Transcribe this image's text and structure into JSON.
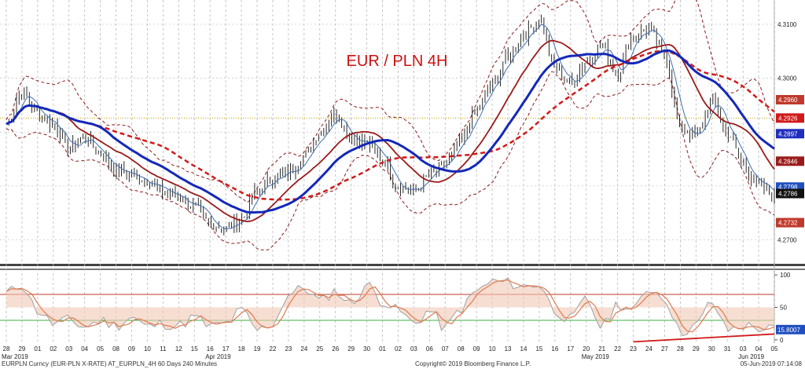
{
  "chart_data": {
    "type": "line",
    "title": "EUR / PLN 4H",
    "colors": {
      "price": "#111111",
      "ma_fast": "#1f4fbf",
      "ma_slow": "#1f2fbf",
      "ma_mid": "#9b1b1b",
      "ma_long": "#d11a1a",
      "band": "#8b1a1a",
      "title": "#cc1111",
      "stoch_k": "#a0a0a0",
      "stoch_d": "#e07a50",
      "oversold": "#3cb043",
      "overbought": "#c0392b"
    },
    "price_axis": {
      "ylim": [
        4.266,
        4.3145
      ],
      "ticks": [
        "4.2700",
        "4.2800",
        "4.2900",
        "4.3000",
        "4.3100"
      ],
      "tick_values": [
        4.27,
        4.28,
        4.29,
        4.3,
        4.31
      ]
    },
    "price_tags": [
      {
        "label": "4.2960",
        "value": 4.296,
        "color": "#c0392b"
      },
      {
        "label": "4.2926",
        "value": 4.2926,
        "color": "#d11a1a"
      },
      {
        "label": "4.2897",
        "value": 4.2897,
        "color": "#1f2fbf"
      },
      {
        "label": "4.2846",
        "value": 4.2846,
        "color": "#9b1b1b"
      },
      {
        "label": "4.2798",
        "value": 4.2798,
        "color": "#1f4fbf"
      },
      {
        "label": "4.2786",
        "value": 4.2786,
        "color": "#111111"
      },
      {
        "label": "4.2732",
        "value": 4.2732,
        "color": "#c0392b"
      }
    ],
    "reference_line": {
      "value": 4.2926
    },
    "oscillator_axis": {
      "ylim": [
        -5,
        105
      ],
      "ticks": [
        "0",
        "50",
        "100"
      ],
      "tick_values": [
        0,
        50,
        100
      ],
      "overbought": 70,
      "oversold": 30,
      "last_label": "15.8007"
    },
    "x_tick_labels": [
      "28",
      "29",
      "01",
      "02",
      "03",
      "04",
      "05",
      "08",
      "09",
      "10",
      "11",
      "12",
      "15",
      "16",
      "17",
      "18",
      "19",
      "22",
      "23",
      "24",
      "25",
      "26",
      "29",
      "30",
      "01",
      "02",
      "03",
      "06",
      "07",
      "08",
      "09",
      "10",
      "13",
      "14",
      "15",
      "16",
      "17",
      "20",
      "21",
      "22",
      "23",
      "24",
      "27",
      "28",
      "29",
      "30",
      "31",
      "03",
      "04",
      "05"
    ],
    "month_labels": [
      {
        "label": "Mar 2019",
        "index": 0
      },
      {
        "label": "Apr 2019",
        "index": 13
      },
      {
        "label": "May 2019",
        "index": 37
      },
      {
        "label": "Jun 2019",
        "index": 47
      }
    ],
    "close_anchors": [
      [
        0,
        4.2915
      ],
      [
        1,
        4.2975
      ],
      [
        2,
        4.2935
      ],
      [
        3,
        4.2915
      ],
      [
        4,
        4.287
      ],
      [
        5,
        4.289
      ],
      [
        6,
        4.286
      ],
      [
        7,
        4.283
      ],
      [
        8,
        4.282
      ],
      [
        9,
        4.281
      ],
      [
        10,
        4.279
      ],
      [
        11,
        4.278
      ],
      [
        12,
        4.276
      ],
      [
        13,
        4.273
      ],
      [
        14,
        4.272
      ],
      [
        15,
        4.274
      ],
      [
        16,
        4.279
      ],
      [
        17,
        4.2815
      ],
      [
        18,
        4.2825
      ],
      [
        19,
        4.2855
      ],
      [
        20,
        4.29
      ],
      [
        21,
        4.2935
      ],
      [
        22,
        4.289
      ],
      [
        23,
        4.288
      ],
      [
        24,
        4.285
      ],
      [
        25,
        4.28
      ],
      [
        26,
        4.279
      ],
      [
        27,
        4.282
      ],
      [
        28,
        4.284
      ],
      [
        29,
        4.288
      ],
      [
        30,
        4.294
      ],
      [
        31,
        4.299
      ],
      [
        32,
        4.304
      ],
      [
        33,
        4.308
      ],
      [
        34,
        4.311
      ],
      [
        35,
        4.302
      ],
      [
        36,
        4.299
      ],
      [
        37,
        4.303
      ],
      [
        38,
        4.306
      ],
      [
        39,
        4.301
      ],
      [
        40,
        4.308
      ],
      [
        41,
        4.309
      ],
      [
        42,
        4.304
      ],
      [
        43,
        4.291
      ],
      [
        44,
        4.289
      ],
      [
        45,
        4.296
      ],
      [
        46,
        4.29
      ],
      [
        47,
        4.284
      ],
      [
        48,
        4.28
      ],
      [
        49,
        4.2786
      ]
    ],
    "stoch_anchors": [
      [
        0,
        72
      ],
      [
        1,
        85
      ],
      [
        2,
        45
      ],
      [
        3,
        25
      ],
      [
        4,
        30
      ],
      [
        5,
        20
      ],
      [
        6,
        30
      ],
      [
        7,
        22
      ],
      [
        8,
        35
      ],
      [
        9,
        20
      ],
      [
        10,
        25
      ],
      [
        11,
        22
      ],
      [
        12,
        35
      ],
      [
        13,
        20
      ],
      [
        14,
        25
      ],
      [
        15,
        45
      ],
      [
        16,
        15
      ],
      [
        17,
        25
      ],
      [
        18,
        70
      ],
      [
        19,
        80
      ],
      [
        20,
        60
      ],
      [
        21,
        75
      ],
      [
        22,
        55
      ],
      [
        23,
        85
      ],
      [
        24,
        60
      ],
      [
        25,
        45
      ],
      [
        26,
        25
      ],
      [
        27,
        45
      ],
      [
        28,
        18
      ],
      [
        29,
        48
      ],
      [
        30,
        75
      ],
      [
        31,
        90
      ],
      [
        32,
        88
      ],
      [
        33,
        82
      ],
      [
        34,
        86
      ],
      [
        35,
        45
      ],
      [
        36,
        30
      ],
      [
        37,
        62
      ],
      [
        38,
        20
      ],
      [
        39,
        55
      ],
      [
        40,
        45
      ],
      [
        41,
        80
      ],
      [
        42,
        65
      ],
      [
        43,
        12
      ],
      [
        44,
        22
      ],
      [
        45,
        58
      ],
      [
        46,
        15
      ],
      [
        47,
        22
      ],
      [
        48,
        18
      ],
      [
        49,
        15.8
      ]
    ]
  },
  "footer": {
    "left": "EURPLN Curncy (EUR-PLN X-RATE) AT_EURPLN_4H 60 Days 240 Minutes",
    "center": "Copyright© 2019 Bloomberg Finance L.P.",
    "right": "05-Jun-2019 07:14:08"
  }
}
